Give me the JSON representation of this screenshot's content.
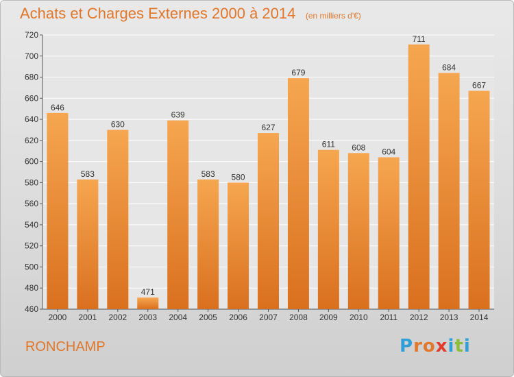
{
  "header": {
    "title": "Achats et Charges Externes 2000 à 2014",
    "subtitle": "(en milliers d'€)"
  },
  "footer": {
    "commune": "RONCHAMP",
    "logo": {
      "text": "Proxiti",
      "letters": [
        "P",
        "r",
        "o",
        "x",
        "i",
        "t",
        "i"
      ],
      "colors": [
        "#2f9fd8",
        "#e1782b",
        "#e1782b",
        "#e23b2b",
        "#2f9fd8",
        "#8cbd3a",
        "#2f9fd8"
      ]
    }
  },
  "colors": {
    "bar_top": "#f6a650",
    "bar_bottom": "#d9701f",
    "accent": "#e0772a"
  },
  "chart_data": {
    "type": "bar",
    "title": "Achats et Charges Externes 2000 à 2014",
    "subtitle": "(en milliers d'€)",
    "xlabel": "",
    "ylabel": "",
    "categories": [
      "2000",
      "2001",
      "2002",
      "2003",
      "2004",
      "2005",
      "2006",
      "2007",
      "2008",
      "2009",
      "2010",
      "2011",
      "2012",
      "2013",
      "2014"
    ],
    "values": [
      646,
      583,
      630,
      471,
      639,
      583,
      580,
      627,
      679,
      611,
      608,
      604,
      711,
      684,
      667
    ],
    "ylim": [
      460,
      720
    ],
    "yticks": [
      460,
      480,
      500,
      520,
      540,
      560,
      580,
      600,
      620,
      640,
      660,
      680,
      700,
      720
    ],
    "grid": true,
    "legend": "none"
  }
}
